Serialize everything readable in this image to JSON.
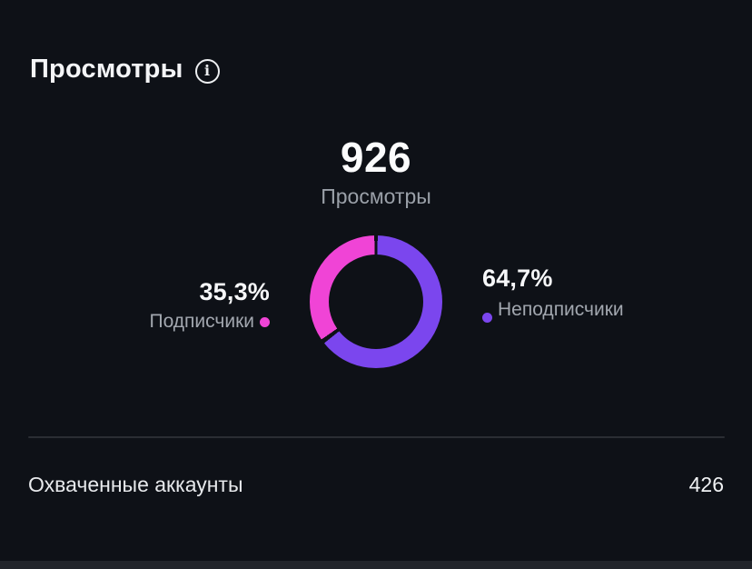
{
  "colors": {
    "background": "#0e1117",
    "pink": "#f044d6",
    "purple": "#7b46ee",
    "divider": "#2a2d33",
    "bottom_strip": "#22252b"
  },
  "header": {
    "title": "Просмотры",
    "info_icon_glyph": "i"
  },
  "chart_data": {
    "type": "pie",
    "style": "donut",
    "title": "Просмотры",
    "center_value": "926",
    "center_label": "Просмотры",
    "total": 926,
    "segments": [
      {
        "label": "Подписчики",
        "percent": 35.3,
        "percent_label": "35,3%",
        "color": "#f044d6",
        "side": "left"
      },
      {
        "label": "Неподписчики",
        "percent": 64.7,
        "percent_label": "64,7%",
        "color": "#7b46ee",
        "side": "right"
      }
    ],
    "gap_degrees": 3,
    "legend_position": "sides",
    "start_angle": "top",
    "direction": "clockwise-larger-first"
  },
  "footer": {
    "label": "Охваченные аккаунты",
    "value": "426"
  }
}
